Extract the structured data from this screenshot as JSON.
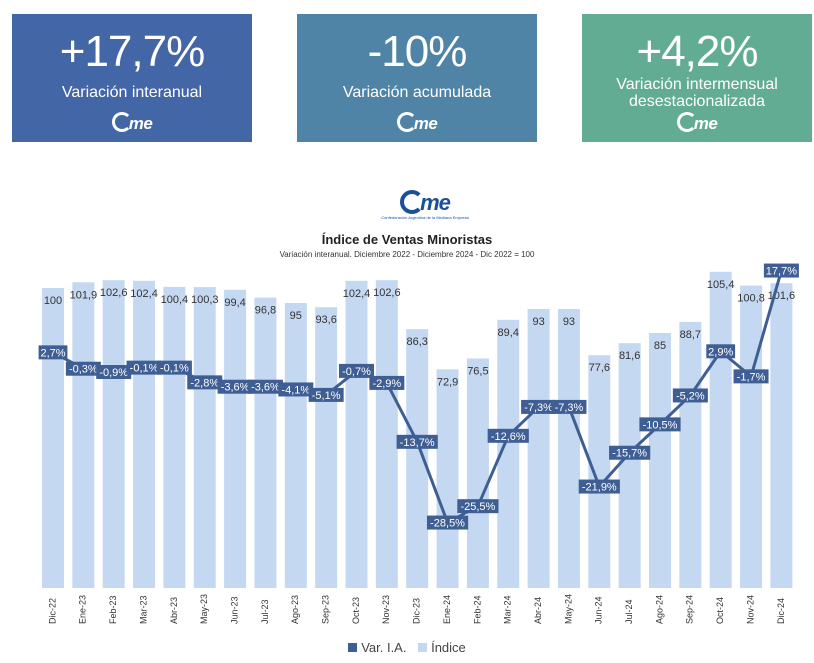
{
  "cards": [
    {
      "value": "+17,7%",
      "label": "Variación interanual",
      "logo": "me",
      "color": "#4366a6"
    },
    {
      "value": "-10%",
      "label": "Variación acumulada",
      "logo": "me",
      "color": "#4f84a6"
    },
    {
      "value": "+4,2%",
      "label": "Variación intermensual desestacionalizada",
      "logo": "me",
      "color": "#62ac94"
    }
  ],
  "brand": {
    "word": "me",
    "tagline": "Confederación Argentina de la Mediana Empresa"
  },
  "chart_data": {
    "type": "bar",
    "title": "Índice de Ventas Minoristas",
    "subtitle": "Variación interanual. Diciembre 2022 - Diciembre 2024 - Dic 2022 = 100",
    "categories": [
      "Dic-22",
      "Ene-23",
      "Feb-23",
      "Mar-23",
      "Abr-23",
      "May-23",
      "Jun-23",
      "Jul-23",
      "Ago-23",
      "Sep-23",
      "Oct-23",
      "Nov-23",
      "Dic-23",
      "Ene-24",
      "Feb-24",
      "Mar-24",
      "Abr-24",
      "May-24",
      "Jun-24",
      "Jul-24",
      "Ago-24",
      "Sep-24",
      "Oct-24",
      "Nov-24",
      "Dic-24"
    ],
    "series": [
      {
        "name": "Índice",
        "type": "bar",
        "color": "#c5d8f2",
        "values": [
          100,
          101.9,
          102.6,
          102.4,
          100.4,
          100.3,
          99.4,
          96.8,
          95,
          93.6,
          102.4,
          102.6,
          86.3,
          72.9,
          76.5,
          89.4,
          93,
          93,
          77.6,
          81.6,
          85,
          88.7,
          105.4,
          100.8,
          101.6
        ],
        "labels": [
          "100",
          "101,9",
          "102,6",
          "102,4",
          "100,4",
          "100,3",
          "99,4",
          "96,8",
          "95",
          "93,6",
          "102,4",
          "102,6",
          "86,3",
          "72,9",
          "76,5",
          "89,4",
          "93",
          "93",
          "77,6",
          "81,6",
          "85",
          "88,7",
          "105,4",
          "100,8",
          "101,6"
        ]
      },
      {
        "name": "Var. I.A.",
        "type": "line",
        "color": "#3f5f94",
        "values": [
          2.7,
          -0.3,
          -0.9,
          -0.1,
          -0.1,
          -2.8,
          -3.6,
          -3.6,
          -4.1,
          -5.1,
          -0.7,
          -2.9,
          -13.7,
          -28.5,
          -25.5,
          -12.6,
          -7.3,
          -7.3,
          -21.9,
          -15.7,
          -10.5,
          -5.2,
          2.9,
          -1.7,
          17.7
        ],
        "labels": [
          "2,7%",
          "-0,3%",
          "-0,9%",
          "-0,1%",
          "-0,1%",
          "-2,8%",
          "-3,6%",
          "-3,6%",
          "-4,1%",
          "-5,1%",
          "-0,7%",
          "-2,9%",
          "-13,7%",
          "-28,5%",
          "-25,5%",
          "-12,6%",
          "-7,3%",
          "-7,3%",
          "-21,9%",
          "-15,7%",
          "-10,5%",
          "-5,2%",
          "2,9%",
          "-1,7%",
          "17,7%"
        ]
      }
    ],
    "ylim_bars": [
      0,
      110
    ],
    "ylim_line": [
      -35,
      20
    ],
    "grid": false,
    "legend": "bottom"
  }
}
